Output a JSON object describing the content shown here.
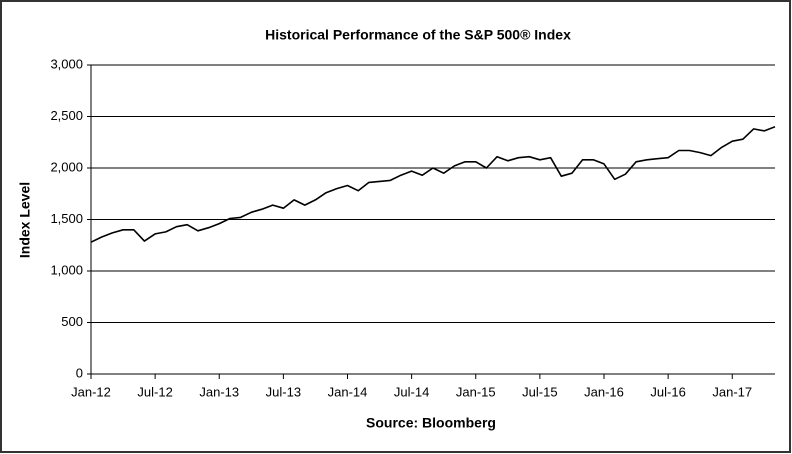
{
  "chart_data": {
    "type": "line",
    "title": "Historical Performance of the S&P 500® Index",
    "x_label": "Source: Bloomberg",
    "y_label": "Index Level",
    "x": [
      "2012-01",
      "2012-02",
      "2012-03",
      "2012-04",
      "2012-05",
      "2012-06",
      "2012-07",
      "2012-08",
      "2012-09",
      "2012-10",
      "2012-11",
      "2012-12",
      "2013-01",
      "2013-02",
      "2013-03",
      "2013-04",
      "2013-05",
      "2013-06",
      "2013-07",
      "2013-08",
      "2013-09",
      "2013-10",
      "2013-11",
      "2013-12",
      "2014-01",
      "2014-02",
      "2014-03",
      "2014-04",
      "2014-05",
      "2014-06",
      "2014-07",
      "2014-08",
      "2014-09",
      "2014-10",
      "2014-11",
      "2014-12",
      "2015-01",
      "2015-02",
      "2015-03",
      "2015-04",
      "2015-05",
      "2015-06",
      "2015-07",
      "2015-08",
      "2015-09",
      "2015-10",
      "2015-11",
      "2015-12",
      "2016-01",
      "2016-02",
      "2016-03",
      "2016-04",
      "2016-05",
      "2016-06",
      "2016-07",
      "2016-08",
      "2016-09",
      "2016-10",
      "2016-11",
      "2016-12",
      "2017-01",
      "2017-02",
      "2017-03",
      "2017-04",
      "2017-05"
    ],
    "series": [
      {
        "name": "S&P 500",
        "color": "#000000",
        "values": [
          1280,
          1330,
          1370,
          1400,
          1400,
          1290,
          1360,
          1380,
          1430,
          1450,
          1390,
          1420,
          1460,
          1510,
          1520,
          1570,
          1600,
          1640,
          1610,
          1690,
          1640,
          1690,
          1760,
          1800,
          1830,
          1780,
          1860,
          1870,
          1880,
          1930,
          1970,
          1930,
          2000,
          1950,
          2020,
          2060,
          2060,
          2000,
          2110,
          2070,
          2100,
          2110,
          2080,
          2100,
          1920,
          1950,
          2080,
          2080,
          2040,
          1890,
          1940,
          2060,
          2080,
          2090,
          2100,
          2170,
          2170,
          2150,
          2120,
          2200,
          2260,
          2280,
          2380,
          2360,
          2400
        ]
      }
    ],
    "xlim": [
      "2012-01",
      "2017-05"
    ],
    "xticks": [
      {
        "value": "2012-01",
        "label": "Jan-12"
      },
      {
        "value": "2012-07",
        "label": "Jul-12"
      },
      {
        "value": "2013-01",
        "label": "Jan-13"
      },
      {
        "value": "2013-07",
        "label": "Jul-13"
      },
      {
        "value": "2014-01",
        "label": "Jan-14"
      },
      {
        "value": "2014-07",
        "label": "Jul-14"
      },
      {
        "value": "2015-01",
        "label": "Jan-15"
      },
      {
        "value": "2015-07",
        "label": "Jul-15"
      },
      {
        "value": "2016-01",
        "label": "Jan-16"
      },
      {
        "value": "2016-07",
        "label": "Jul-16"
      },
      {
        "value": "2017-01",
        "label": "Jan-17"
      }
    ],
    "ylim": [
      0,
      3000
    ],
    "yticks": [
      0,
      500,
      {
        "value": 1000,
        "label": "1,000"
      },
      {
        "value": 1500,
        "label": "1,500"
      },
      {
        "value": 2000,
        "label": "2,000"
      },
      {
        "value": 2500,
        "label": "2,500"
      },
      {
        "value": 3000,
        "label": "3,000"
      }
    ],
    "grid": true
  }
}
